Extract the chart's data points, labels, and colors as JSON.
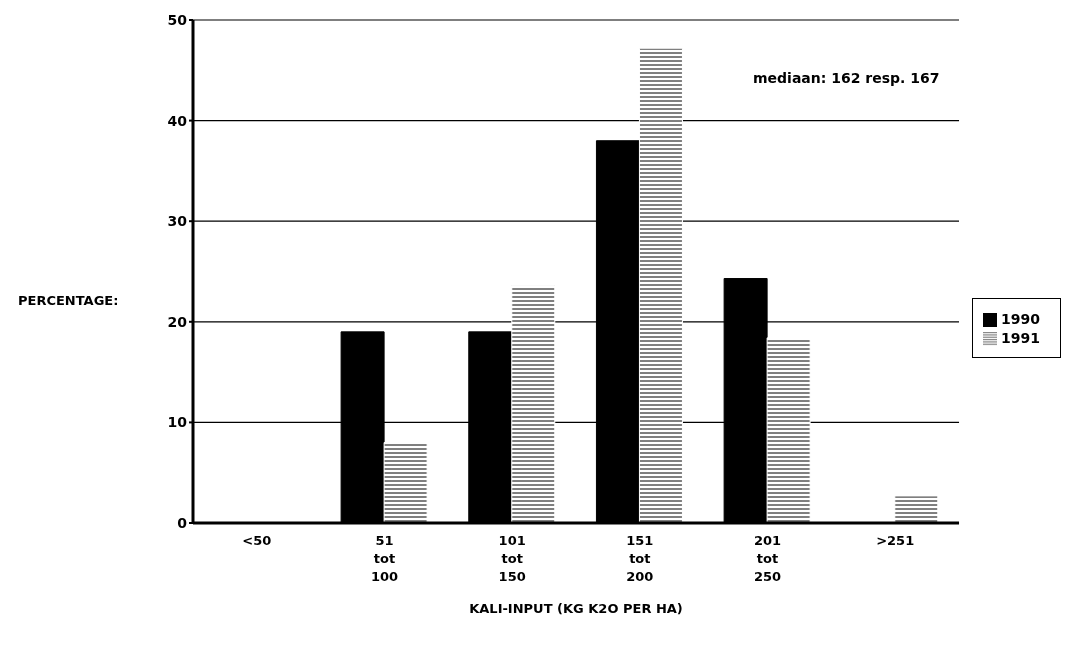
{
  "chart_data": {
    "type": "bar",
    "xlabel": "KALI-INPUT (KG K2O PER HA)",
    "ylabel": "PERCENTAGE:",
    "categories": [
      "<50",
      "51\ntot\n100",
      "101\ntot\n150",
      "151\ntot\n200",
      "201\ntot\n250",
      ">251"
    ],
    "series": [
      {
        "name": "1990",
        "color": "#000000",
        "values": [
          0,
          19,
          19,
          38,
          24.3,
          0
        ]
      },
      {
        "name": "1991",
        "color": "#ffffff",
        "values": [
          0,
          8,
          23.6,
          47.2,
          18.4,
          2.7
        ]
      }
    ],
    "ylim": [
      0,
      50
    ],
    "yticks": [
      0,
      10,
      20,
      30,
      40,
      50
    ],
    "grid": "y",
    "legend": "right",
    "annotations": [
      "mediaan: 162 resp. 167"
    ]
  }
}
